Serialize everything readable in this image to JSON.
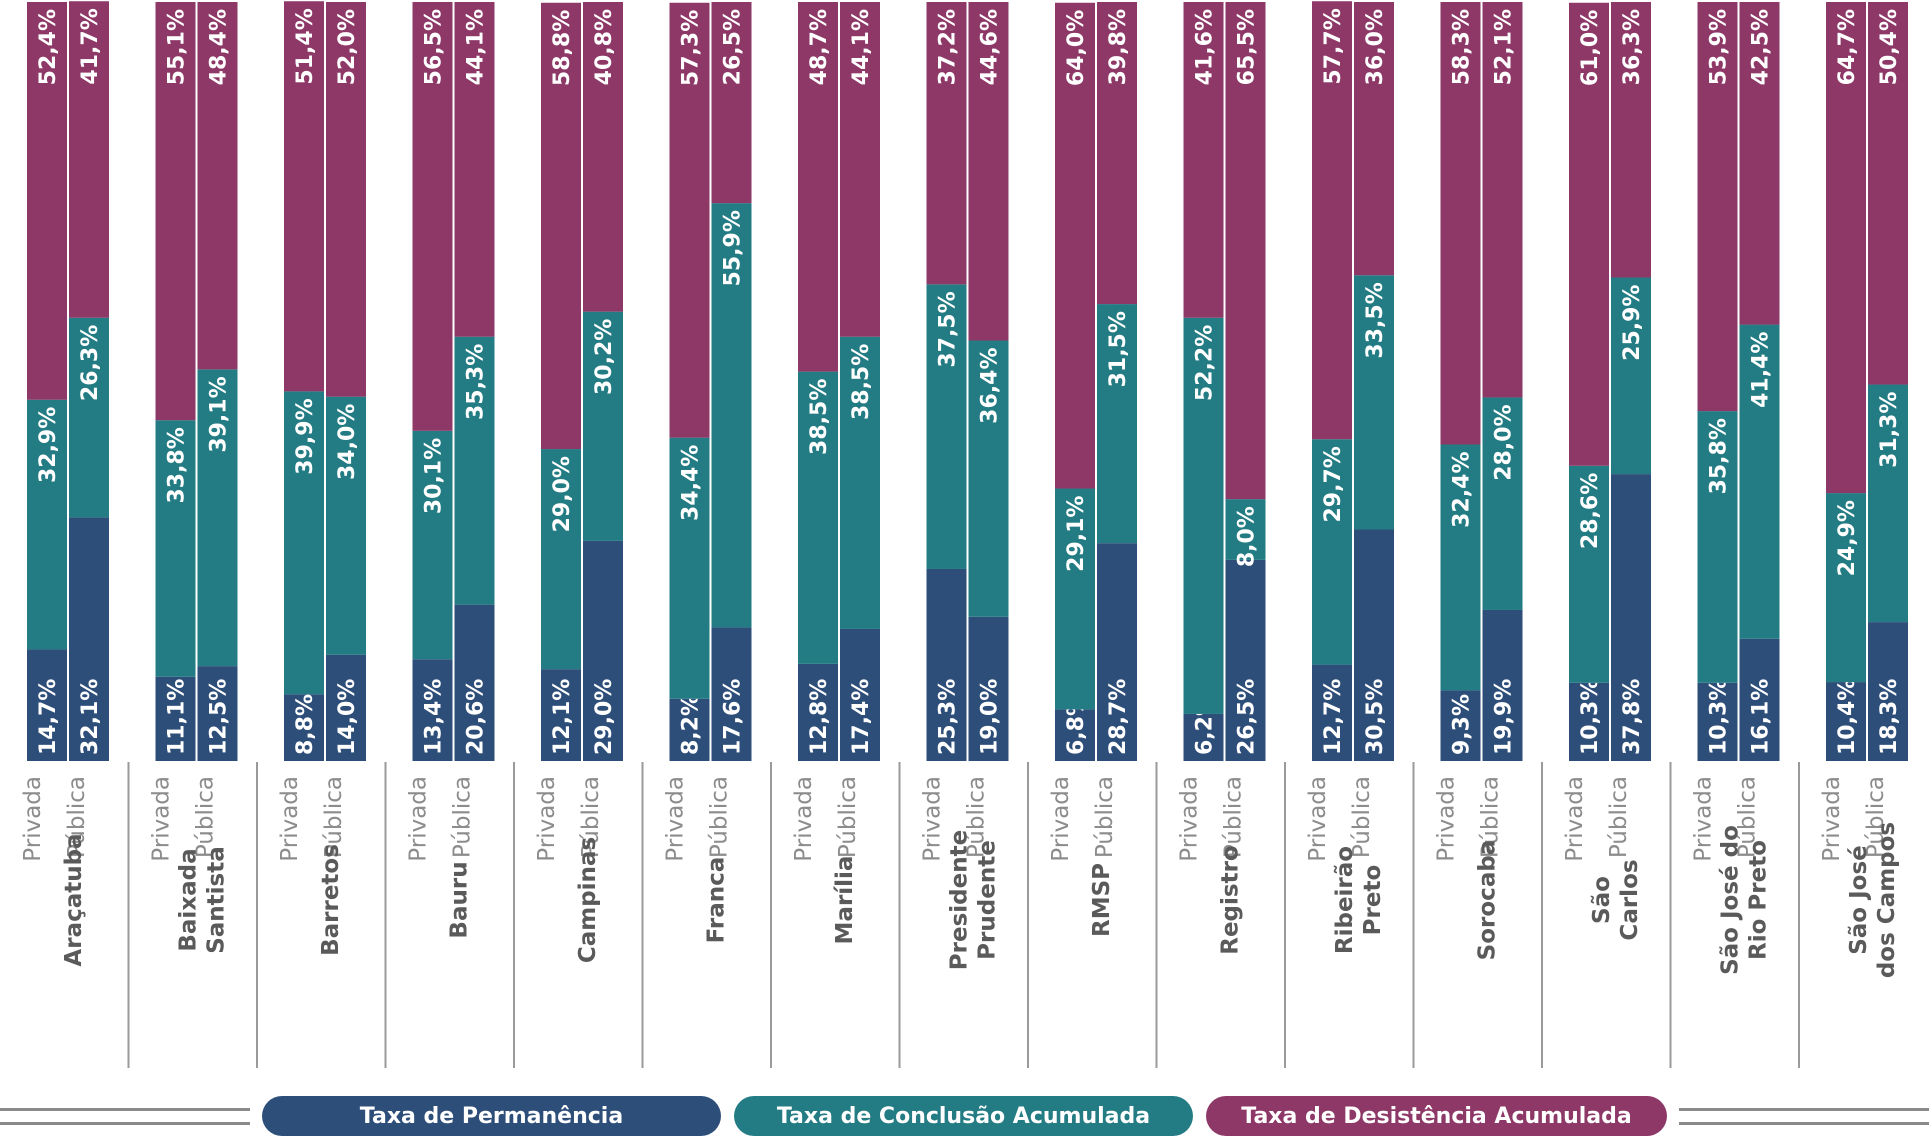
{
  "chart_data": {
    "type": "bar",
    "stacked": true,
    "orientation": "vertical-100-percent",
    "categories": [
      "Araçatuba",
      "Baixada Santista",
      "Barretos",
      "Bauru",
      "Campinas",
      "Franca",
      "Marília",
      "Presidente Prudente",
      "RMSP",
      "Registro",
      "Ribeirão Preto",
      "Sorocaba",
      "São Carlos",
      "São José do Rio Preto",
      "São José dos Campos"
    ],
    "category_lines": [
      [
        "Araçatuba"
      ],
      [
        "Baixada",
        "Santista"
      ],
      [
        "Barretos"
      ],
      [
        "Bauru"
      ],
      [
        "Campinas"
      ],
      [
        "Franca"
      ],
      [
        "Marília"
      ],
      [
        "Presidente",
        "Prudente"
      ],
      [
        "RMSP"
      ],
      [
        "Registro"
      ],
      [
        "Ribeirão",
        "Preto"
      ],
      [
        "Sorocaba"
      ],
      [
        "São",
        "Carlos"
      ],
      [
        "São José do",
        "Rio Preto"
      ],
      [
        "São José",
        "dos Campos"
      ]
    ],
    "sub_categories": [
      "Privada",
      "Pública"
    ],
    "series": [
      {
        "name": "Taxa de Permanência",
        "color": "#2e4e7a",
        "values": [
          [
            14.7,
            32.1
          ],
          [
            11.1,
            12.5
          ],
          [
            8.8,
            14.0
          ],
          [
            13.4,
            20.6
          ],
          [
            12.1,
            29.0
          ],
          [
            8.2,
            17.6
          ],
          [
            12.8,
            17.4
          ],
          [
            25.3,
            19.0
          ],
          [
            6.8,
            28.7
          ],
          [
            6.2,
            26.5
          ],
          [
            12.7,
            30.5
          ],
          [
            9.3,
            19.9
          ],
          [
            10.3,
            37.8
          ],
          [
            10.3,
            16.1
          ],
          [
            10.4,
            18.3
          ]
        ],
        "labels": [
          [
            "14,7%",
            "32,1%"
          ],
          [
            "11,1%",
            "12,5%"
          ],
          [
            "8,8%",
            "14,0%"
          ],
          [
            "13,4%",
            "20,6%"
          ],
          [
            "12,1%",
            "29,0%"
          ],
          [
            "8,2%",
            "17,6%"
          ],
          [
            "12,8%",
            "17,4%"
          ],
          [
            "25,3%",
            "19,0%"
          ],
          [
            "6,8%",
            "28,7%"
          ],
          [
            "6,2%",
            "26,5%"
          ],
          [
            "12,7%",
            "30,5%"
          ],
          [
            "9,3%",
            "19,9%"
          ],
          [
            "10,3%",
            "37,8%"
          ],
          [
            "10,3%",
            "16,1%"
          ],
          [
            "10,4%",
            "18,3%"
          ]
        ]
      },
      {
        "name": "Taxa de Conclusão Acumulada",
        "color": "#237c83",
        "values": [
          [
            32.9,
            26.3
          ],
          [
            33.8,
            39.1
          ],
          [
            39.9,
            34.0
          ],
          [
            30.1,
            35.3
          ],
          [
            29.0,
            30.2
          ],
          [
            34.4,
            55.9
          ],
          [
            38.5,
            38.5
          ],
          [
            37.5,
            36.4
          ],
          [
            29.1,
            31.5
          ],
          [
            52.2,
            8.0
          ],
          [
            29.7,
            33.5
          ],
          [
            32.4,
            28.0
          ],
          [
            28.6,
            25.9
          ],
          [
            35.8,
            41.4
          ],
          [
            24.9,
            31.3
          ]
        ],
        "labels": [
          [
            "32,9%",
            "26,3%"
          ],
          [
            "33,8%",
            "39,1%"
          ],
          [
            "39,9%",
            "34,0%"
          ],
          [
            "30,1%",
            "35,3%"
          ],
          [
            "29,0%",
            "30,2%"
          ],
          [
            "34,4%",
            "55,9%"
          ],
          [
            "38,5%",
            "38,5%"
          ],
          [
            "37,5%",
            "36,4%"
          ],
          [
            "29,1%",
            "31,5%"
          ],
          [
            "52,2%",
            "8,0%"
          ],
          [
            "29,7%",
            "33,5%"
          ],
          [
            "32,4%",
            "28,0%"
          ],
          [
            "28,6%",
            "25,9%"
          ],
          [
            "35,8%",
            "41,4%"
          ],
          [
            "24,9%",
            "31,3%"
          ]
        ]
      },
      {
        "name": "Taxa de Desistência Acumulada",
        "color": "#8e3868",
        "values": [
          [
            52.4,
            41.7
          ],
          [
            55.1,
            48.4
          ],
          [
            51.4,
            52.0
          ],
          [
            56.5,
            44.1
          ],
          [
            58.8,
            40.8
          ],
          [
            57.3,
            26.5
          ],
          [
            48.7,
            44.1
          ],
          [
            37.2,
            44.6
          ],
          [
            64.0,
            39.8
          ],
          [
            41.6,
            65.5
          ],
          [
            57.7,
            36.0
          ],
          [
            58.3,
            52.1
          ],
          [
            61.0,
            36.3
          ],
          [
            53.9,
            42.5
          ],
          [
            64.7,
            50.4
          ]
        ],
        "labels": [
          [
            "52,4%",
            "41,7%"
          ],
          [
            "55,1%",
            "48,4%"
          ],
          [
            "51,4%",
            "52,0%"
          ],
          [
            "56,5%",
            "44,1%"
          ],
          [
            "58,8%",
            "40,8%"
          ],
          [
            "57,3%",
            "26,5%"
          ],
          [
            "48,7%",
            "44,1%"
          ],
          [
            "37,2%",
            "44,6%"
          ],
          [
            "64,0%",
            "39,8%"
          ],
          [
            "41,6%",
            "65,5%"
          ],
          [
            "57,7%",
            "36,0%"
          ],
          [
            "58,3%",
            "52,1%"
          ],
          [
            "61,0%",
            "36,3%"
          ],
          [
            "53,9%",
            "42,5%"
          ],
          [
            "64,7%",
            "50,4%"
          ]
        ]
      }
    ],
    "ylim": [
      0,
      100
    ],
    "title": "",
    "xlabel": "",
    "ylabel": "",
    "grid": false,
    "legend": "bottom"
  }
}
